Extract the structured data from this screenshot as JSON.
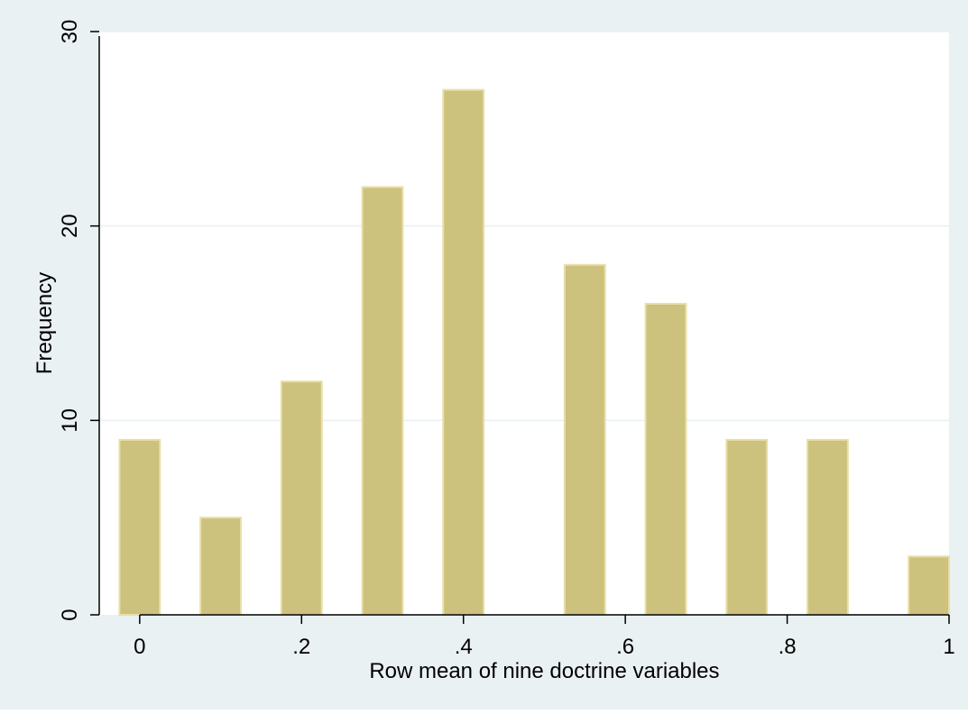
{
  "chart_data": {
    "type": "bar",
    "title": "",
    "xlabel": "Row mean of nine doctrine variables",
    "ylabel": "Frequency",
    "bars": [
      {
        "x": 0.0,
        "value": 9
      },
      {
        "x": 0.1,
        "value": 5
      },
      {
        "x": 0.2,
        "value": 12
      },
      {
        "x": 0.3,
        "value": 22
      },
      {
        "x": 0.4,
        "value": 27
      },
      {
        "x": 0.55,
        "value": 18
      },
      {
        "x": 0.65,
        "value": 16
      },
      {
        "x": 0.75,
        "value": 9
      },
      {
        "x": 0.85,
        "value": 9
      },
      {
        "x": 0.975,
        "value": 3
      }
    ],
    "xlim": [
      -0.05,
      1.0
    ],
    "ylim": [
      0,
      30
    ],
    "xticks": [
      0,
      0.2,
      0.4,
      0.6,
      0.8,
      1
    ],
    "xtick_labels": [
      "0",
      ".2",
      ".4",
      ".6",
      ".8",
      "1"
    ],
    "yticks": [
      0,
      10,
      20,
      30
    ],
    "ytick_labels": [
      "0",
      "10",
      "20",
      "30"
    ],
    "grid": true,
    "legend": "none",
    "colors": {
      "bar_fill": "#cdc17e",
      "bar_stroke": "#e8dfa8",
      "plot_background": "#ffffff",
      "outer_background": "#eaf1f3",
      "grid": "#e9f0f2"
    }
  }
}
